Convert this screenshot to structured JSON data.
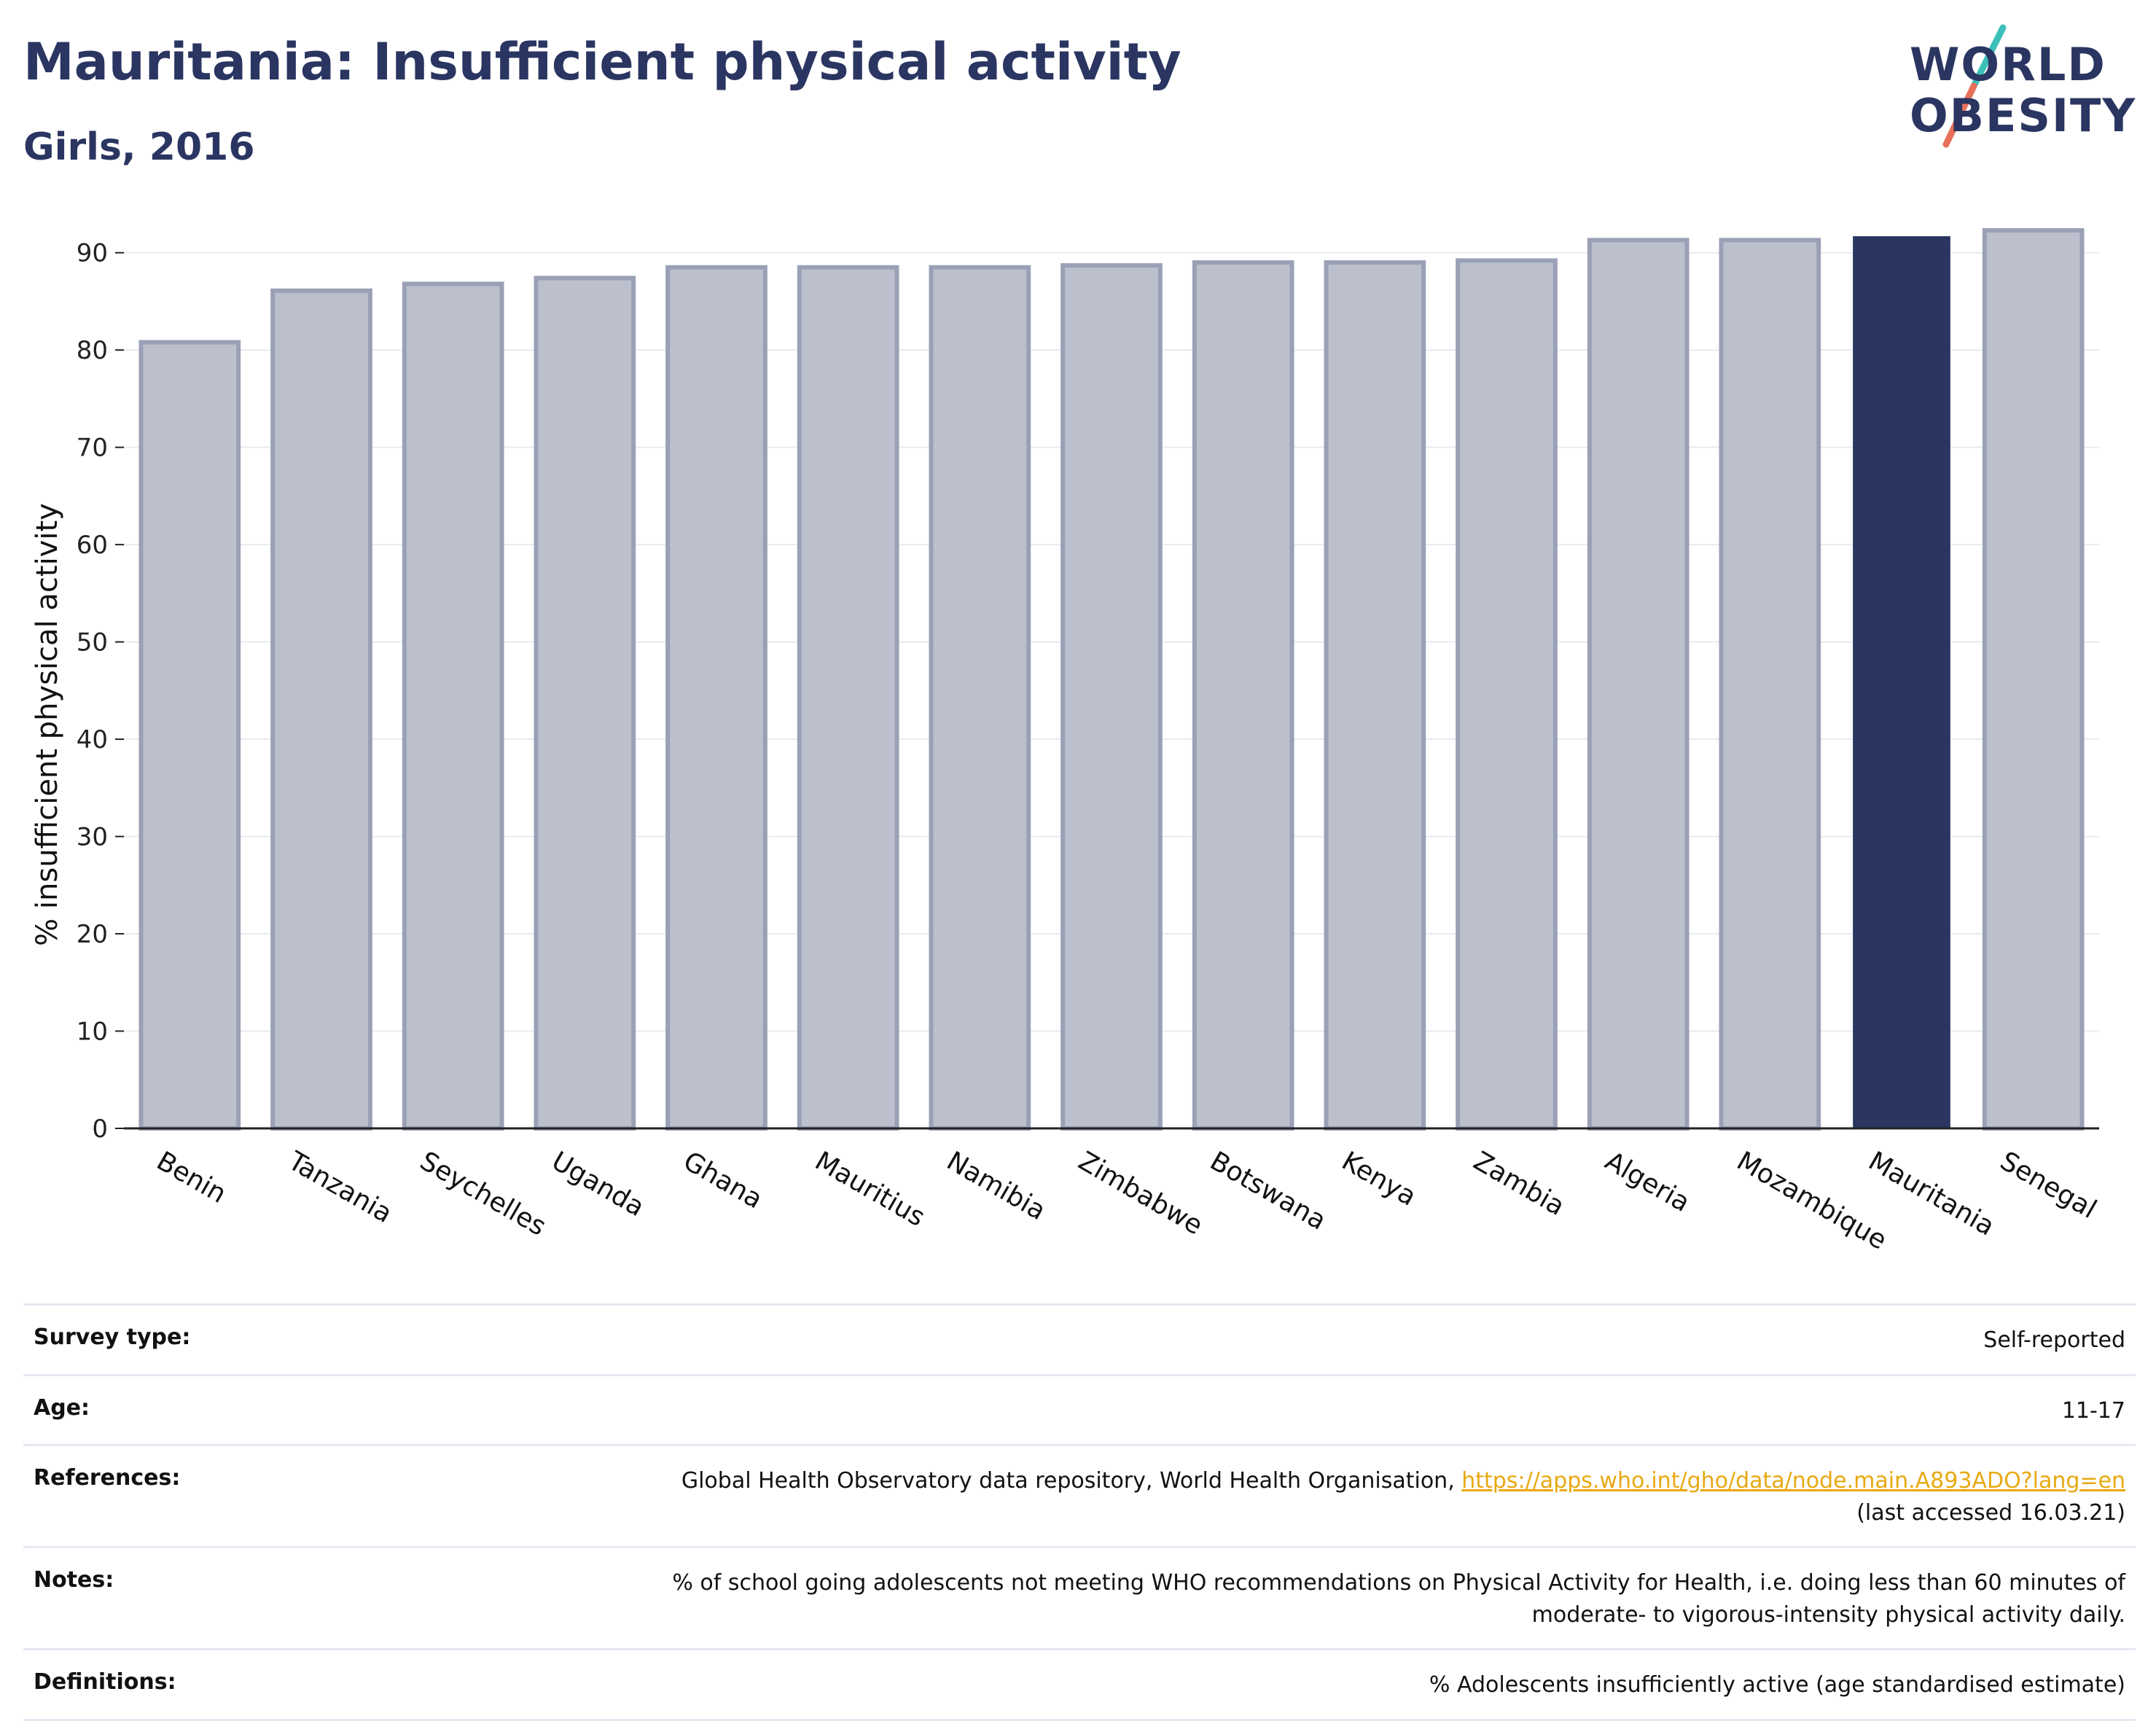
{
  "header": {
    "title": "Mauritania: Insufficient physical activity",
    "subtitle": "Girls, 2016"
  },
  "logo": {
    "line1": "WORLD",
    "line2": "OBESITY",
    "colors": {
      "text": "#2a3561",
      "slash_top": "#3bbfb8",
      "slash_bottom": "#e8705b"
    }
  },
  "chart_data": {
    "type": "bar",
    "title": "Mauritania: Insufficient physical activity",
    "subtitle": "Girls, 2016",
    "ylabel": "% insufficient physical activity",
    "xlabel": "",
    "ylim": [
      0,
      95
    ],
    "yticks": [
      0,
      10,
      20,
      30,
      40,
      50,
      60,
      70,
      80,
      90
    ],
    "grid": true,
    "highlight": "Mauritania",
    "colors": {
      "default": "#bcc0cd",
      "default_edge": "#9aa0b5",
      "highlight": "#2a3561"
    },
    "categories": [
      "Benin",
      "Tanzania",
      "Seychelles",
      "Uganda",
      "Ghana",
      "Mauritius",
      "Namibia",
      "Zimbabwe",
      "Botswana",
      "Kenya",
      "Zambia",
      "Algeria",
      "Mozambique",
      "Mauritania",
      "Senegal"
    ],
    "values": [
      80.8,
      86.1,
      86.8,
      87.4,
      88.5,
      88.5,
      88.5,
      88.7,
      89.0,
      89.0,
      89.2,
      91.3,
      91.3,
      91.7,
      92.3
    ]
  },
  "info": {
    "survey_type": {
      "label": "Survey type:",
      "value": "Self-reported"
    },
    "age": {
      "label": "Age:",
      "value": "11-17"
    },
    "references": {
      "label": "References:",
      "text": "Global Health Observatory data repository, World Health Organisation, ",
      "link": "https://apps.who.int/gho/data/node.main.A893ADO?lang=en",
      "accessed": "(last accessed 16.03.21)"
    },
    "notes": {
      "label": "Notes:",
      "line1": "% of school going adolescents not meeting WHO recommendations on Physical Activity for Health, i.e. doing less than 60 minutes of",
      "line2": "moderate- to vigorous-intensity physical activity daily."
    },
    "definitions": {
      "label": "Definitions:",
      "value": "% Adolescents insufficiently active (age standardised estimate)"
    }
  }
}
